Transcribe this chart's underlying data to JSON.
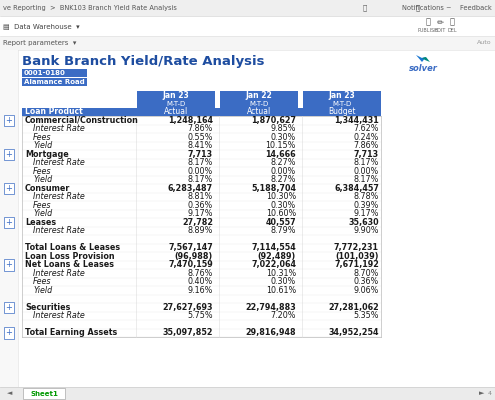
{
  "title": "Bank Branch Yield/Rate Analysis",
  "nav_text": "ve Reporting  >  BNK103 Branch Yield Rate Analysis",
  "nav_right": "Notifications ~    Feedback",
  "toolbar_left": "▤  Data Warehouse  ▾",
  "report_params": "Report parameters  ▾",
  "auto_label": "Auto",
  "branch_code": "0001-0180",
  "branch_name": "Alamance Road",
  "sheet_tab": "Sheet1",
  "header_bg": "#3B6CC4",
  "col_headers_row1": [
    "Jan 23",
    "Jan 22",
    "Jan 23"
  ],
  "col_headers_row2": [
    "M-T-D",
    "M-T-D",
    "M-T-D"
  ],
  "col_headers_row3": [
    "Actual",
    "Actual",
    "Budget"
  ],
  "row_label_header": "Loan Product",
  "rows": [
    {
      "label": "Commercial/Construction",
      "bold": true,
      "indent": 0,
      "values": [
        "1,248,164",
        "1,870,627",
        "1,344,431"
      ],
      "plus": true
    },
    {
      "label": "Interest Rate",
      "bold": false,
      "indent": 1,
      "values": [
        "7.86%",
        "9.85%",
        "7.62%"
      ],
      "plus": false
    },
    {
      "label": "Fees",
      "bold": false,
      "indent": 1,
      "values": [
        "0.55%",
        "0.30%",
        "0.24%"
      ],
      "plus": false
    },
    {
      "label": "Yield",
      "bold": false,
      "indent": 1,
      "values": [
        "8.41%",
        "10.15%",
        "7.86%"
      ],
      "plus": false
    },
    {
      "label": "Mortgage",
      "bold": true,
      "indent": 0,
      "values": [
        "7,713",
        "14,666",
        "7,713"
      ],
      "plus": true
    },
    {
      "label": "Interest Rate",
      "bold": false,
      "indent": 1,
      "values": [
        "8.17%",
        "8.27%",
        "8.17%"
      ],
      "plus": false
    },
    {
      "label": "Fees",
      "bold": false,
      "indent": 1,
      "values": [
        "0.00%",
        "0.00%",
        "0.00%"
      ],
      "plus": false
    },
    {
      "label": "Yield",
      "bold": false,
      "indent": 1,
      "values": [
        "8.17%",
        "8.27%",
        "8.17%"
      ],
      "plus": false
    },
    {
      "label": "Consumer",
      "bold": true,
      "indent": 0,
      "values": [
        "6,283,487",
        "5,188,704",
        "6,384,457"
      ],
      "plus": true
    },
    {
      "label": "Interest Rate",
      "bold": false,
      "indent": 1,
      "values": [
        "8.81%",
        "10.30%",
        "8.78%"
      ],
      "plus": false
    },
    {
      "label": "Fees",
      "bold": false,
      "indent": 1,
      "values": [
        "0.36%",
        "0.30%",
        "0.39%"
      ],
      "plus": false
    },
    {
      "label": "Yield",
      "bold": false,
      "indent": 1,
      "values": [
        "9.17%",
        "10.60%",
        "9.17%"
      ],
      "plus": false
    },
    {
      "label": "Leases",
      "bold": true,
      "indent": 0,
      "values": [
        "27,782",
        "40,557",
        "35,630"
      ],
      "plus": true
    },
    {
      "label": "Interest Rate",
      "bold": false,
      "indent": 1,
      "values": [
        "8.89%",
        "8.79%",
        "9.90%"
      ],
      "plus": false
    },
    {
      "label": "",
      "bold": false,
      "indent": 0,
      "values": [
        "",
        "",
        ""
      ],
      "plus": false
    },
    {
      "label": "Total Loans & Leases",
      "bold": true,
      "indent": 0,
      "values": [
        "7,567,147",
        "7,114,554",
        "7,772,231"
      ],
      "plus": false
    },
    {
      "label": "Loan Loss Provision",
      "bold": true,
      "indent": 0,
      "values": [
        "(96,988)",
        "(92,489)",
        "(101,039)"
      ],
      "plus": false
    },
    {
      "label": "Net Loans & Leases",
      "bold": true,
      "indent": 0,
      "values": [
        "7,470,159",
        "7,022,064",
        "7,671,192"
      ],
      "plus": true
    },
    {
      "label": "Interest Rate",
      "bold": false,
      "indent": 1,
      "values": [
        "8.76%",
        "10.31%",
        "8.70%"
      ],
      "plus": false
    },
    {
      "label": "Fees",
      "bold": false,
      "indent": 1,
      "values": [
        "0.40%",
        "0.30%",
        "0.36%"
      ],
      "plus": false
    },
    {
      "label": "Yield",
      "bold": false,
      "indent": 1,
      "values": [
        "9.16%",
        "10.61%",
        "9.06%"
      ],
      "plus": false
    },
    {
      "label": "",
      "bold": false,
      "indent": 0,
      "values": [
        "",
        "",
        ""
      ],
      "plus": false
    },
    {
      "label": "Securities",
      "bold": true,
      "indent": 0,
      "values": [
        "27,627,693",
        "22,794,883",
        "27,281,062"
      ],
      "plus": true
    },
    {
      "label": "Interest Rate",
      "bold": false,
      "indent": 1,
      "values": [
        "5.75%",
        "7.20%",
        "5.35%"
      ],
      "plus": false
    },
    {
      "label": "",
      "bold": false,
      "indent": 0,
      "values": [
        "",
        "",
        ""
      ],
      "plus": false
    },
    {
      "label": "Total Earning Assets",
      "bold": true,
      "indent": 0,
      "values": [
        "35,097,852",
        "29,816,948",
        "34,952,254"
      ],
      "plus": true
    }
  ]
}
